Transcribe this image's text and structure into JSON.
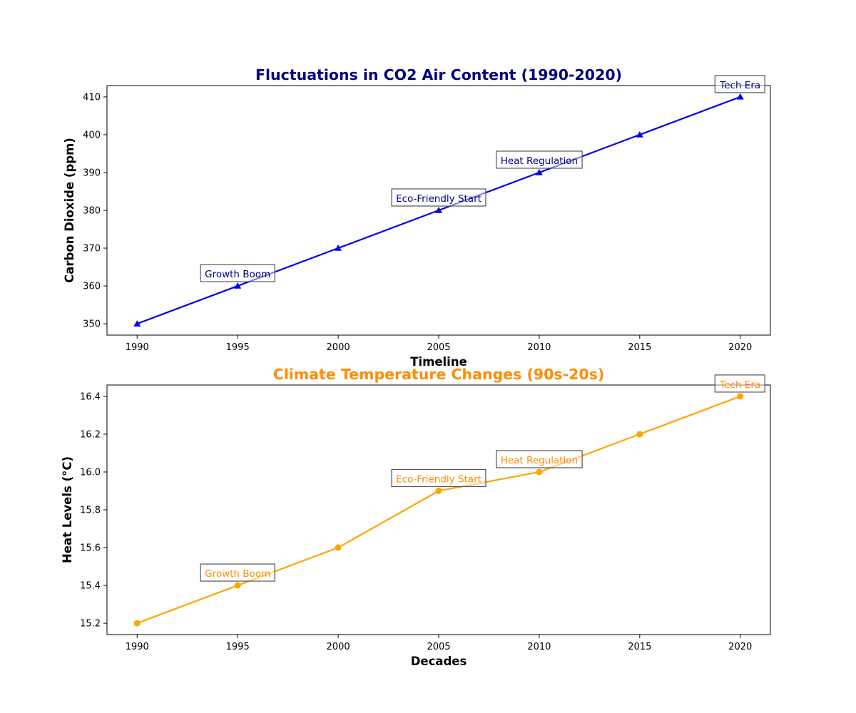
{
  "chart_data": [
    {
      "type": "line",
      "title": "Fluctuations in CO2 Air Content (1990-2020)",
      "xlabel": "Timeline",
      "ylabel": "Carbon Dioxide (ppm)",
      "x": [
        1990,
        1995,
        2000,
        2005,
        2010,
        2015,
        2020
      ],
      "series": [
        {
          "values": [
            350,
            360,
            370,
            380,
            390,
            400,
            410
          ],
          "color": "#0000ee",
          "marker": "triangle"
        }
      ],
      "xlim": [
        1988.5,
        2021.5
      ],
      "ylim": [
        347,
        413
      ],
      "xticks": [
        1990,
        1995,
        2000,
        2005,
        2010,
        2015,
        2020
      ],
      "yticks": [
        350,
        360,
        370,
        380,
        390,
        400,
        410
      ],
      "title_color": "#000080",
      "annotation_color": "#000080",
      "grid": false,
      "annotations": [
        {
          "x": 1995,
          "y": 360,
          "text": "Growth Boom"
        },
        {
          "x": 2005,
          "y": 380,
          "text": "Eco-Friendly Start"
        },
        {
          "x": 2010,
          "y": 390,
          "text": "Heat Regulation"
        },
        {
          "x": 2020,
          "y": 410,
          "text": "Tech Era"
        }
      ]
    },
    {
      "type": "line",
      "title": "Climate Temperature Changes (90s-20s)",
      "xlabel": "Decades",
      "ylabel": "Heat Levels (°C)",
      "x": [
        1990,
        1995,
        2000,
        2005,
        2010,
        2015,
        2020
      ],
      "series": [
        {
          "values": [
            15.2,
            15.4,
            15.6,
            15.9,
            16.0,
            16.2,
            16.4
          ],
          "color": "#ffa500",
          "marker": "circle"
        }
      ],
      "xlim": [
        1988.5,
        2021.5
      ],
      "ylim": [
        15.14,
        16.46
      ],
      "xticks": [
        1990,
        1995,
        2000,
        2005,
        2010,
        2015,
        2020
      ],
      "yticks": [
        15.2,
        15.4,
        15.6,
        15.8,
        16.0,
        16.2,
        16.4
      ],
      "title_color": "#ff8c00",
      "annotation_color": "#ff8c00",
      "grid": false,
      "annotations": [
        {
          "x": 1995,
          "y": 15.4,
          "text": "Growth Boom"
        },
        {
          "x": 2005,
          "y": 15.9,
          "text": "Eco-Friendly Start"
        },
        {
          "x": 2010,
          "y": 16.0,
          "text": "Heat Regulation"
        },
        {
          "x": 2020,
          "y": 16.4,
          "text": "Tech Era"
        }
      ]
    }
  ]
}
